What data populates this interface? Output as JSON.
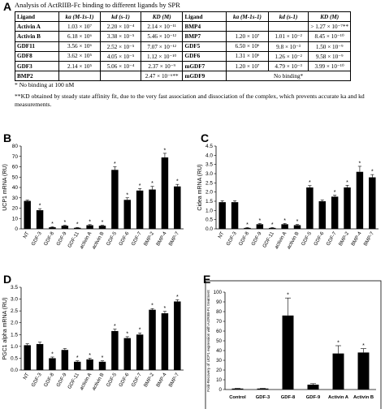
{
  "panel_letters": {
    "A": "A",
    "B": "B",
    "C": "C",
    "D": "D",
    "E": "E"
  },
  "table": {
    "title": "Analysis of ActRIIB-Fc binding to different ligands by SPR",
    "headers": [
      "Ligand",
      "ka (M-1s-1)",
      "kd (s-1)",
      "KD (M)",
      "Ligand",
      "ka (M-1s-1)",
      "kd (s-1)",
      "KD (M)"
    ],
    "rows": [
      [
        "Activin A",
        "1.03 × 10⁷",
        "2.20 × 10⁻⁴",
        "2.14 × 10⁻¹¹",
        "BMP4",
        "",
        "",
        "> 1.27 × 10⁻⁷**"
      ],
      [
        "Activin B",
        "6.18 × 10⁶",
        "3.38 × 10⁻⁵",
        "5.46 × 10⁻¹²",
        "BMP7",
        "1.20 × 10⁷",
        "1.01 × 10⁻²",
        "8.45 × 10⁻¹⁰"
      ],
      [
        "GDF11",
        "3.56 × 10⁶",
        "2.52 × 10⁻⁵",
        "7.07 × 10⁻¹²",
        "GDF5",
        "6.50 × 10⁶",
        "9.8 × 10⁻³",
        "1.50 × 10⁻⁹"
      ],
      [
        "GDF8",
        "3.62 × 10⁵",
        "4.05 × 10⁻⁵",
        "1.12 × 10⁻¹⁰",
        "GDF6",
        "1.31 × 10⁶",
        "1.26 × 10⁻²",
        "9.58 × 10⁻⁹"
      ],
      [
        "GDF3",
        "2.14 × 10⁵",
        "5.06 × 10⁻⁴",
        "2.37 × 10⁻⁹",
        "mGDF7",
        "1.20 × 10⁷",
        "4.79 × 10⁻³",
        "3.99 × 10⁻¹⁰"
      ]
    ],
    "last_row": {
      "ligand_left": "BMP2",
      "kd_left": "2.47 × 10⁻⁶**",
      "ligand_right": "mGDF9",
      "right_span": "No binding*"
    },
    "note1": "* No binding at 100 nM",
    "note2": "**KD obtained by steady state affinity fit, due to the very fast association and dissociation of the complex, which prevents accurate ka and kd measurements."
  },
  "chart_data": [
    {
      "panel": "B",
      "type": "bar",
      "ylabel": "UCP1 mRNA (RU)",
      "ylim": [
        0,
        80
      ],
      "yticks": [
        0,
        10,
        20,
        30,
        40,
        50,
        60,
        70,
        80
      ],
      "categories": [
        "NT",
        "GDF-3",
        "GDF-8",
        "GDF-9",
        "GDF-11",
        "activin A",
        "activin B",
        "GDF-5",
        "GDF-6",
        "GDF-7",
        "BMP-2",
        "BMP-4",
        "BMP-7"
      ],
      "values": [
        27,
        18,
        1.5,
        3,
        1,
        3.5,
        3,
        57,
        28,
        37,
        38,
        69,
        41
      ],
      "errors": [
        0.8,
        1.5,
        0.5,
        0.5,
        0.4,
        0.6,
        0.5,
        3,
        2,
        2,
        3,
        4,
        2
      ],
      "star": [
        false,
        true,
        true,
        true,
        true,
        true,
        true,
        true,
        true,
        true,
        true,
        true,
        true
      ]
    },
    {
      "panel": "C",
      "type": "bar",
      "ylabel": "Cidea mRNA (RU)",
      "ylim": [
        0,
        4.5
      ],
      "yticks": [
        0,
        0.5,
        1,
        1.5,
        2,
        2.5,
        3,
        3.5,
        4,
        4.5
      ],
      "categories": [
        "NT",
        "GDF-3",
        "GDF-8",
        "GDF-9",
        "GDF-11",
        "activin A",
        "activin B",
        "GDF-5",
        "GDF-6",
        "GDF-7",
        "BMP-2",
        "BMP-4",
        "BMP-7"
      ],
      "values": [
        1.45,
        1.45,
        0.05,
        0.25,
        0.05,
        0.25,
        0.2,
        2.25,
        1.5,
        1.75,
        2.25,
        3.1,
        2.8
      ],
      "errors": [
        0.08,
        0.08,
        0.02,
        0.04,
        0.02,
        0.04,
        0.04,
        0.1,
        0.07,
        0.08,
        0.12,
        0.3,
        0.15
      ],
      "star": [
        false,
        false,
        true,
        true,
        true,
        true,
        true,
        true,
        false,
        true,
        true,
        true,
        true
      ]
    },
    {
      "panel": "D",
      "type": "bar",
      "ylabel": "PGC1 alpha mRNA (RU)",
      "ylim": [
        0,
        3.5
      ],
      "yticks": [
        0,
        0.5,
        1,
        1.5,
        2,
        2.5,
        3,
        3.5
      ],
      "categories": [
        "NT",
        "GDF-3",
        "GDF-8",
        "GDF-9",
        "GDF-11",
        "activin A",
        "activin B",
        "GDF-5",
        "GDF-6",
        "GDF-7",
        "BMP-2",
        "BMP-4",
        "BMP-7"
      ],
      "values": [
        1.05,
        1.1,
        0.5,
        0.85,
        0.35,
        0.45,
        0.35,
        1.65,
        1.35,
        1.5,
        2.55,
        2.4,
        2.9
      ],
      "errors": [
        0.06,
        0.08,
        0.05,
        0.06,
        0.04,
        0.05,
        0.04,
        0.08,
        0.06,
        0.07,
        0.05,
        0.08,
        0.07
      ],
      "star": [
        false,
        false,
        true,
        false,
        true,
        true,
        true,
        true,
        true,
        true,
        true,
        true,
        true
      ]
    },
    {
      "panel": "E",
      "type": "bar",
      "ylabel": "Fold-Recovery of UCP1 expression with ActRIIB-Fc treatment",
      "ylim": [
        0,
        100
      ],
      "yticks": [
        0,
        10,
        20,
        30,
        40,
        50,
        60,
        70,
        80,
        90,
        100
      ],
      "categories": [
        "Control",
        "GDF-3",
        "GDF-8",
        "GDF-9",
        "Activin A",
        "Activin B"
      ],
      "values": [
        1,
        1,
        76,
        5,
        37,
        38
      ],
      "errors": [
        0.2,
        0.2,
        18,
        1,
        8,
        4
      ],
      "star": [
        false,
        false,
        true,
        false,
        true,
        true
      ]
    }
  ]
}
